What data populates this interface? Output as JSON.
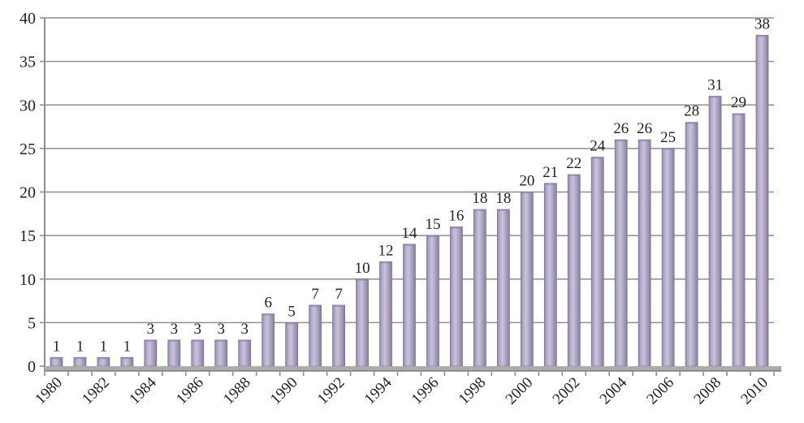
{
  "chart_data": {
    "type": "bar",
    "title": "",
    "xlabel": "",
    "ylabel": "",
    "categories": [
      "1980",
      "1981",
      "1982",
      "1983",
      "1984",
      "1985",
      "1986",
      "1987",
      "1988",
      "1989",
      "1990",
      "1991",
      "1992",
      "1993",
      "1994",
      "1995",
      "1996",
      "1997",
      "1998",
      "1999",
      "2000",
      "2001",
      "2002",
      "2003",
      "2004",
      "2005",
      "2006",
      "2007",
      "2008",
      "2009",
      "2010"
    ],
    "values": [
      1,
      1,
      1,
      1,
      3,
      3,
      3,
      3,
      3,
      6,
      5,
      7,
      7,
      10,
      12,
      14,
      15,
      16,
      18,
      18,
      20,
      21,
      22,
      24,
      26,
      26,
      25,
      28,
      31,
      29,
      38
    ],
    "value_labels": [
      "1",
      "1",
      "1",
      "1",
      "3",
      "3",
      "3",
      "3",
      "3",
      "6",
      "5",
      "7",
      "7",
      "10",
      "12",
      "14",
      "15",
      "16",
      "18",
      "18",
      "20",
      "21",
      "22",
      "24",
      "26",
      "26",
      "25",
      "28",
      "31",
      "29",
      "38"
    ],
    "x_tick_labels": [
      "1980",
      "1982",
      "1984",
      "1986",
      "1988",
      "1990",
      "1992",
      "1994",
      "1996",
      "1998",
      "2000",
      "2002",
      "2004",
      "2006",
      "2008",
      "2010"
    ],
    "x_tick_label_every": 2,
    "y_ticks": [
      0,
      5,
      10,
      15,
      20,
      25,
      30,
      35,
      40
    ],
    "ylim": [
      0,
      40
    ],
    "grid": true,
    "legend": "none",
    "colors": {
      "bar_main": "#aea5c6",
      "bar_light": "#c9c3da",
      "bar_dark_edge": "#8a81a4",
      "bar_stroke": "#7e759a",
      "gridline": "#8f8f8f",
      "axis": "#8f8f8f",
      "baseline_band": "#acacac",
      "baseline_shadow": "#7d7d7d",
      "text": "#222222"
    }
  }
}
